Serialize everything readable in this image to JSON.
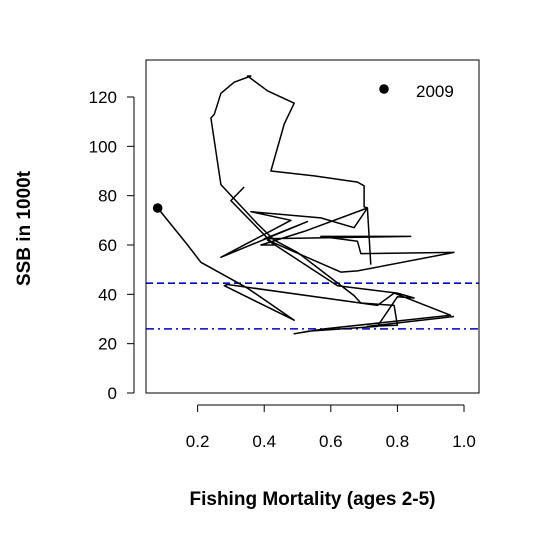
{
  "chart_data": {
    "type": "line",
    "title": "",
    "xlabel": "Fishing Mortality (ages 2-5)",
    "ylabel": "SSB in 1000t",
    "xlim": [
      0.045,
      1.045
    ],
    "ylim": [
      0,
      135
    ],
    "xticks": [
      0.2,
      0.4,
      0.6,
      0.8,
      1.0
    ],
    "xtick_labels": [
      "0.2",
      "0.4",
      "0.6",
      "0.8",
      "1.0"
    ],
    "yticks": [
      0,
      20,
      40,
      60,
      80,
      100,
      120
    ],
    "ytick_labels": [
      "0",
      "20",
      "40",
      "60",
      "80",
      "100",
      "120"
    ],
    "grid": false,
    "legend": {
      "position": "top-right",
      "label": "2009",
      "marker": "filled-circle"
    },
    "series": [
      {
        "line_color": "#000000",
        "points": [
          [
            0.34,
            83.5
          ],
          [
            0.3,
            78.0
          ],
          [
            0.43,
            60.0
          ],
          [
            0.39,
            60.0
          ],
          [
            0.52,
            65.5
          ],
          [
            0.71,
            75.0
          ],
          [
            0.67,
            67.0
          ],
          [
            0.57,
            71.0
          ],
          [
            0.36,
            73.5
          ],
          [
            0.48,
            70.0
          ],
          [
            0.27,
            55.0
          ],
          [
            0.53,
            69.5
          ],
          [
            0.4,
            62.5
          ],
          [
            0.84,
            63.5
          ],
          [
            0.57,
            63.5
          ],
          [
            0.68,
            61.5
          ],
          [
            0.69,
            56.5
          ],
          [
            0.97,
            57.0
          ],
          [
            0.68,
            49.5
          ],
          [
            0.63,
            49.0
          ],
          [
            0.41,
            62.0
          ],
          [
            0.62,
            43.5
          ],
          [
            0.8,
            40.5
          ],
          [
            0.85,
            38.5
          ],
          [
            0.8,
            39.0
          ],
          [
            0.74,
            27.0
          ],
          [
            0.53,
            25.0
          ],
          [
            0.49,
            24.0
          ],
          [
            0.58,
            26.0
          ],
          [
            0.96,
            31.5
          ],
          [
            0.79,
            40.5
          ],
          [
            0.74,
            35.5
          ],
          [
            0.29,
            44.0
          ],
          [
            0.28,
            43.5
          ],
          [
            0.49,
            29.5
          ],
          [
            0.35,
            42.5
          ],
          [
            0.21,
            53.0
          ],
          [
            0.17,
            60.0
          ],
          [
            0.08,
            75.0
          ]
        ]
      },
      {
        "line_color": "#000000",
        "points": [
          [
            0.72,
            52.0
          ],
          [
            0.71,
            75.0
          ],
          [
            0.7,
            75.5
          ],
          [
            0.7,
            84.0
          ],
          [
            0.68,
            85.5
          ],
          [
            0.55,
            88.0
          ],
          [
            0.42,
            90.0
          ],
          [
            0.46,
            109.0
          ],
          [
            0.49,
            117.5
          ],
          [
            0.41,
            122.5
          ],
          [
            0.35,
            128.5
          ],
          [
            0.36,
            128.5
          ],
          [
            0.31,
            126.0
          ],
          [
            0.27,
            121.5
          ],
          [
            0.25,
            113.0
          ],
          [
            0.24,
            111.5
          ],
          [
            0.27,
            84.5
          ],
          [
            0.38,
            68.5
          ],
          [
            0.43,
            62.0
          ],
          [
            0.5,
            57.0
          ],
          [
            0.67,
            39.5
          ],
          [
            0.69,
            36.5
          ],
          [
            0.79,
            35.5
          ],
          [
            0.8,
            27.5
          ],
          [
            0.71,
            27.0
          ],
          [
            0.97,
            31.0
          ]
        ]
      }
    ],
    "highlight_point": {
      "label": "2009",
      "x": 0.08,
      "y": 75.0
    },
    "reference_lines": [
      {
        "y": 44.5,
        "style": "dashed",
        "color": "#0000cc"
      },
      {
        "y": 26.0,
        "style": "dashdot",
        "color": "#0000cc"
      }
    ]
  }
}
